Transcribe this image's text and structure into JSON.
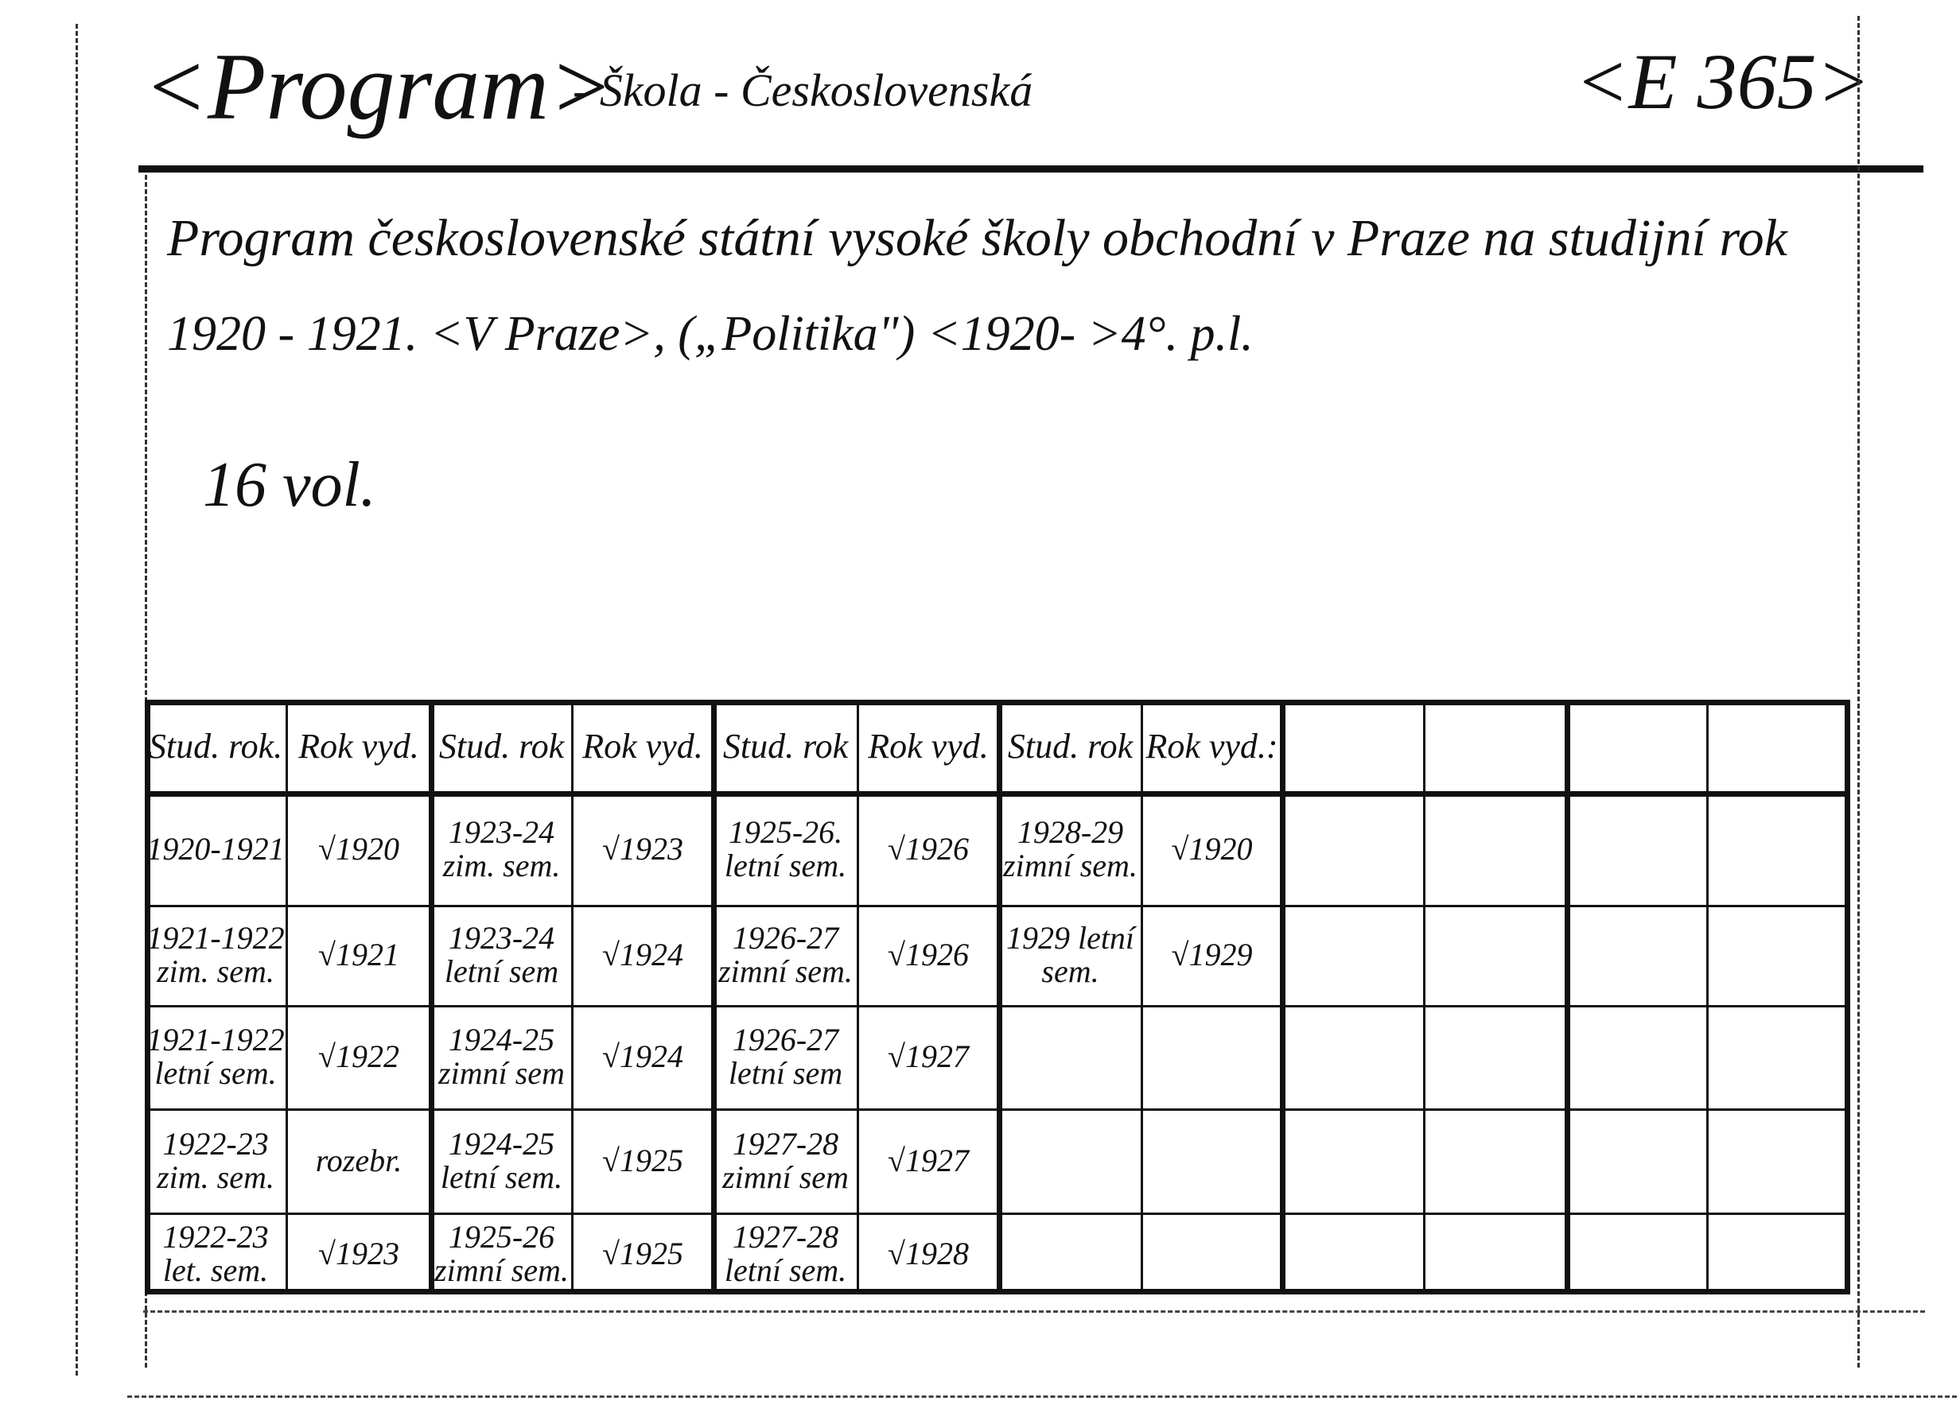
{
  "card": {
    "heading": "<Program>",
    "subject": "- Škola - Československá",
    "call_number": "<E 365>",
    "title_line1": "Program československé státní vysoké školy obchodní v Praze na studijní rok",
    "title_line2": "1920 - 1921. <V Praze>, („Politika\") <1920- >4°. p.l.",
    "volumes": "16 vol."
  },
  "table": {
    "headers": [
      [
        "Stud. rok.",
        "Rok vyd."
      ],
      [
        "Stud. rok",
        "Rok vyd."
      ],
      [
        "Stud. rok",
        "Rok vyd."
      ],
      [
        "Stud. rok",
        "Rok vyd.:"
      ],
      [
        "",
        ""
      ],
      [
        "",
        ""
      ]
    ],
    "groups": [
      [
        [
          "1920-1921",
          "√1920"
        ],
        [
          "1921-1922 zim. sem.",
          "√1921"
        ],
        [
          "1921-1922 letní sem.",
          "√1922"
        ],
        [
          "1922-23 zim. sem.",
          "rozebr."
        ],
        [
          "1922-23 let. sem.",
          "√1923"
        ]
      ],
      [
        [
          "1923-24 zim. sem.",
          "√1923"
        ],
        [
          "1923-24 letní sem",
          "√1924"
        ],
        [
          "1924-25 zimní sem",
          "√1924"
        ],
        [
          "1924-25 letní sem.",
          "√1925"
        ],
        [
          "1925-26 zimní sem.",
          "√1925"
        ]
      ],
      [
        [
          "1925-26. letní sem.",
          "√1926"
        ],
        [
          "1926-27 zimní sem.",
          "√1926"
        ],
        [
          "1926-27 letní sem",
          "√1927"
        ],
        [
          "1927-28 zimní sem",
          "√1927"
        ],
        [
          "1927-28 letní sem.",
          "√1928"
        ]
      ],
      [
        [
          "1928-29 zimní sem.",
          "√1920"
        ],
        [
          "1929 letní sem.",
          "√1929"
        ],
        [
          "",
          ""
        ],
        [
          "",
          ""
        ],
        [
          "",
          ""
        ]
      ],
      [
        [
          "",
          ""
        ],
        [
          "",
          ""
        ],
        [
          "",
          ""
        ],
        [
          "",
          ""
        ],
        [
          "",
          ""
        ]
      ],
      [
        [
          "",
          ""
        ],
        [
          "",
          ""
        ],
        [
          "",
          ""
        ],
        [
          "",
          ""
        ],
        [
          "",
          ""
        ]
      ]
    ]
  }
}
